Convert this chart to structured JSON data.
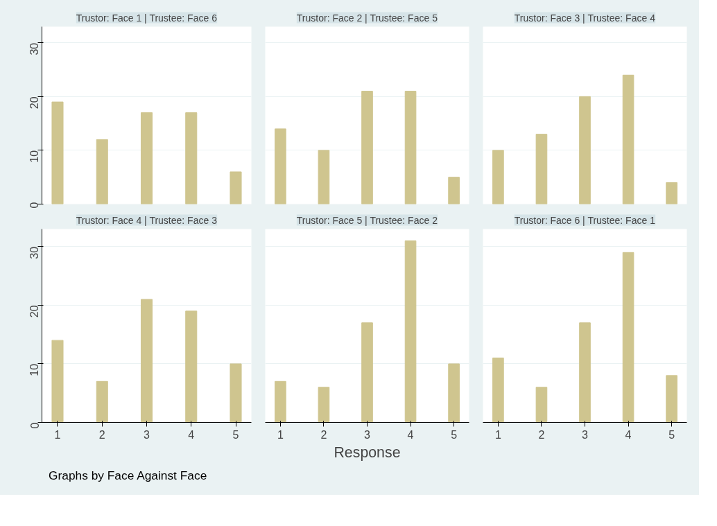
{
  "chart_data": [
    {
      "type": "bar",
      "title": "Trustor: Face 1 | Trustee: Face 6",
      "x": [
        1,
        2,
        3,
        4,
        5
      ],
      "values": [
        19,
        12,
        17,
        17,
        6
      ],
      "color": "#cfc58f",
      "xlim": [
        0.65,
        5.35
      ],
      "ylim": [
        0,
        33
      ],
      "xticks": [
        1,
        2,
        3,
        4,
        5
      ],
      "yticks": [
        0,
        10,
        20,
        30
      ],
      "grid": "y",
      "tick_labels": "y"
    },
    {
      "type": "bar",
      "title": "Trustor: Face 2 | Trustee: Face 5",
      "x": [
        1,
        2,
        3,
        4,
        5
      ],
      "values": [
        14,
        10,
        21,
        21,
        5
      ],
      "color": "#cfc58f",
      "xlim": [
        0.65,
        5.35
      ],
      "ylim": [
        0,
        33
      ],
      "xticks": [
        1,
        2,
        3,
        4,
        5
      ],
      "yticks": [
        0,
        10,
        20,
        30
      ],
      "grid": "y",
      "tick_labels": false
    },
    {
      "type": "bar",
      "title": "Trustor: Face 3 | Trustee: Face 4",
      "x": [
        1,
        2,
        3,
        4,
        5
      ],
      "values": [
        10,
        13,
        20,
        24,
        4
      ],
      "color": "#cfc58f",
      "xlim": [
        0.65,
        5.35
      ],
      "ylim": [
        0,
        33
      ],
      "xticks": [
        1,
        2,
        3,
        4,
        5
      ],
      "yticks": [
        0,
        10,
        20,
        30
      ],
      "grid": "y",
      "tick_labels": false
    },
    {
      "type": "bar",
      "title": "Trustor: Face 4 | Trustee: Face 3",
      "x": [
        1,
        2,
        3,
        4,
        5
      ],
      "values": [
        14,
        7,
        21,
        19,
        10
      ],
      "color": "#cfc58f",
      "xlim": [
        0.65,
        5.35
      ],
      "ylim": [
        0,
        33
      ],
      "xticks": [
        1,
        2,
        3,
        4,
        5
      ],
      "yticks": [
        0,
        10,
        20,
        30
      ],
      "grid": "y",
      "annotations": [
        "Graphs by Face Against Face"
      ]
    },
    {
      "type": "bar",
      "title": "Trustor: Face 5 | Trustee: Face 2",
      "x": [
        1,
        2,
        3,
        4,
        5
      ],
      "values": [
        7,
        6,
        17,
        31,
        10
      ],
      "color": "#cfc58f",
      "xlim": [
        0.65,
        5.35
      ],
      "ylim": [
        0,
        33
      ],
      "xticks": [
        1,
        2,
        3,
        4,
        5
      ],
      "yticks": [
        0,
        10,
        20,
        30
      ],
      "grid": "y",
      "tick_labels": "x",
      "xlabel": "Response"
    },
    {
      "type": "bar",
      "title": "Trustor: Face 6 | Trustee: Face 1",
      "x": [
        1,
        2,
        3,
        4,
        5
      ],
      "values": [
        11,
        6,
        17,
        29,
        8
      ],
      "color": "#cfc58f",
      "xlim": [
        0.65,
        5.35
      ],
      "ylim": [
        0,
        33
      ],
      "xticks": [
        1,
        2,
        3,
        4,
        5
      ],
      "yticks": [
        0,
        10,
        20,
        30
      ],
      "grid": "y",
      "tick_labels": "x"
    }
  ]
}
